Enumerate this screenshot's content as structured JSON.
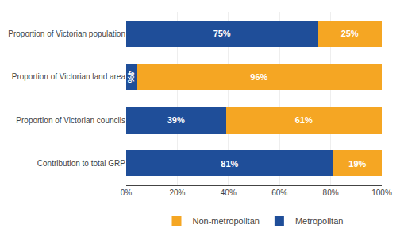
{
  "chart_data": {
    "type": "bar",
    "orientation": "horizontal",
    "stacked": true,
    "categories": [
      "Contribution to total GRP",
      "Proportion of Victorian councils",
      "Proportion of Victorian land area",
      "Proportion of Victorian population"
    ],
    "series": [
      {
        "name": "Metropolitan",
        "color": "#1F4E99",
        "values": [
          81,
          39,
          4,
          75
        ],
        "value_labels": [
          "81%",
          "39%",
          "4%",
          "75%"
        ]
      },
      {
        "name": "Non-metropolitan",
        "color": "#F5A623",
        "values": [
          19,
          61,
          96,
          25
        ],
        "value_labels": [
          "19%",
          "61%",
          "96%",
          "25%"
        ]
      }
    ],
    "xlim": [
      0,
      100
    ],
    "xticks": [
      {
        "value": 0,
        "label": "0%"
      },
      {
        "value": 20,
        "label": "20%"
      },
      {
        "value": 40,
        "label": "40%"
      },
      {
        "value": 60,
        "label": "60%"
      },
      {
        "value": 80,
        "label": "80%"
      },
      {
        "value": 100,
        "label": "100%"
      }
    ],
    "grid": true,
    "data_labels": true,
    "legend": "bottom"
  }
}
